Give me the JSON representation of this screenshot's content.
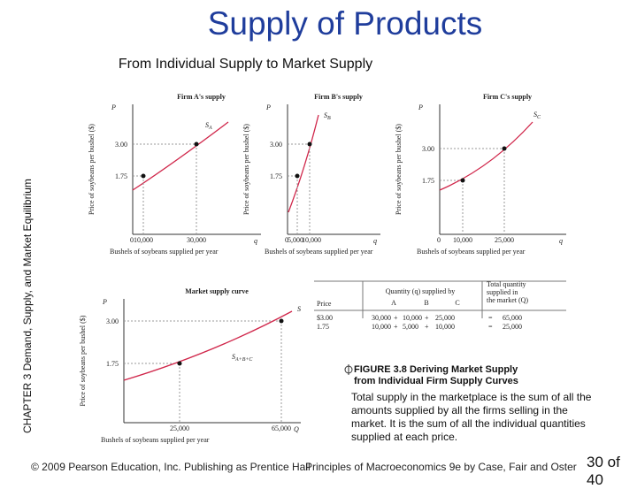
{
  "title": "Supply of Products",
  "subtitle": "From Individual Supply to Market Supply",
  "side_label": {
    "chapter": "CHAPTER 3",
    "text": "Demand, Supply, and Market Equilibrium"
  },
  "panels": [
    {
      "title": "Firm A's supply",
      "y_symbol": "P",
      "y_axis_label": "Price of soybeans per bushel ($)",
      "y_ticks": [
        "3.00",
        "1.75"
      ],
      "origin": "0",
      "x_ticks": [
        "10,000",
        "30,000"
      ],
      "x_symbol": "q",
      "x_axis_label": "Bushels of soybeans supplied per year",
      "curve_label": "S",
      "curve_label_sub": "A"
    },
    {
      "title": "Firm B's supply",
      "y_symbol": "P",
      "y_axis_label": "Price of soybeans per bushel ($)",
      "y_ticks": [
        "3.00",
        "1.75"
      ],
      "origin": "0",
      "x_ticks": [
        "5,000",
        "10,000"
      ],
      "x_symbol": "q",
      "x_axis_label": "Bushels of soybeans supplied per year",
      "curve_label": "S",
      "curve_label_sub": "B"
    },
    {
      "title": "Firm C's supply",
      "y_symbol": "P",
      "y_axis_label": "Price of soybeans per bushel ($)",
      "y_ticks": [
        "3.00",
        "1.75"
      ],
      "origin": "0",
      "x_ticks": [
        "10,000",
        "25,000"
      ],
      "x_symbol": "q",
      "x_axis_label": "Bushels of soybeans supplied per year",
      "curve_label": "S",
      "curve_label_sub": "C"
    },
    {
      "title": "Market supply curve",
      "y_symbol": "P",
      "y_axis_label": "Price of soybeans per bushel ($)",
      "y_ticks": [
        "3.00",
        "1.75"
      ],
      "x_ticks": [
        "25,000",
        "65,000"
      ],
      "x_symbol": "Q",
      "x_axis_label": "Bushels of soybeans supplied per year",
      "curve_label": "S",
      "point_label": "S",
      "point_label_sub": "A+B+C"
    }
  ],
  "table": {
    "headers": {
      "price": "Price",
      "group": "Quantity (q) supplied by",
      "firms": [
        "A",
        "B",
        "C"
      ],
      "total": [
        "Total quantity",
        "supplied in",
        "the market (Q)"
      ]
    },
    "rows": [
      [
        "$3.00",
        "30,000",
        "+",
        "10,000",
        "+",
        "25,000",
        "=",
        "65,000"
      ],
      [
        "1.75",
        "10,000",
        "+",
        "5,000",
        "+",
        "10,000",
        "=",
        "25,000"
      ]
    ]
  },
  "caption": {
    "figure": [
      "FIGURE 3.8 Deriving Market Supply",
      "from Individual Firm Supply Curves"
    ],
    "body": "Total supply in the marketplace is the sum of all the amounts supplied by all the firms selling in the market. It is the sum of all the individual quantities supplied at each price."
  },
  "footer": {
    "copyright": "© 2009 Pearson Education, Inc. Publishing as Prentice Hall",
    "book": "Principles of Macroeconomics 9e by Case, Fair and Oster",
    "page": "30 of 40"
  }
}
